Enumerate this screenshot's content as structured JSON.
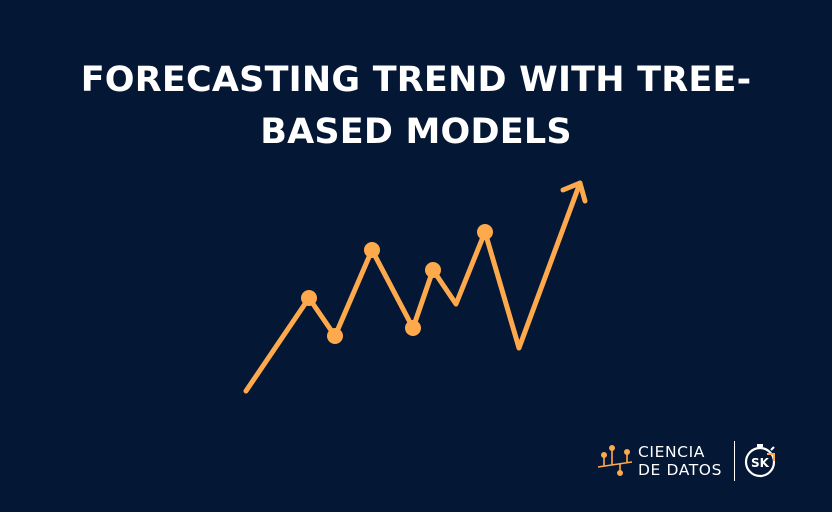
{
  "title": {
    "line1": "FORECASTING TREND WITH TREE-",
    "line2": "BASED MODELS"
  },
  "logo": {
    "line1": "CIENCIA",
    "line2": "DE DATOS",
    "badge_text": "SK"
  },
  "colors": {
    "background": "#041734",
    "accent": "#FFA94D",
    "text": "#FFFFFF"
  },
  "icons": [
    "trend-chart-icon",
    "ciencia-de-datos-logo-icon",
    "skforecast-logo-icon"
  ]
}
